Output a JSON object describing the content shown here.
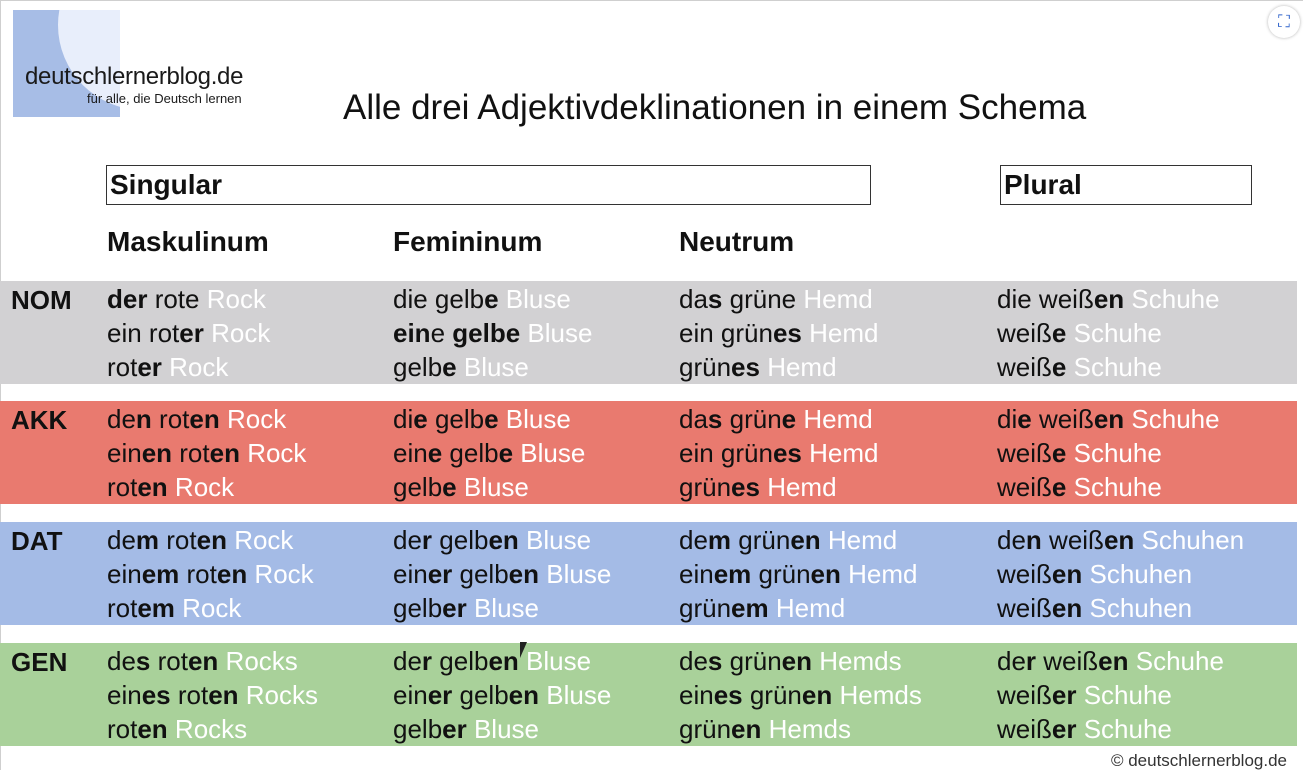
{
  "logo": {
    "name": "deutschlernerblog.de",
    "tagline": "für alle, die Deutsch lernen"
  },
  "title": "Alle drei Adjektivdeklinationen in einem Schema",
  "headers": {
    "singular": "Singular",
    "plural": "Plural"
  },
  "columns": [
    "Maskulinum",
    "Femininum",
    "Neutrum"
  ],
  "copyright": "© deutschlernerblog.de",
  "colors": {
    "nom": "#d2d1d3",
    "akk": "#e97a6f",
    "dat": "#a4bbe6",
    "gen": "#a9d19a"
  },
  "rows": [
    {
      "case": "NOM",
      "cells": [
        [
          [
            [
              "der",
              "r"
            ],
            [
              " rote",
              ""
            ],
            [
              " Rock",
              "noun"
            ]
          ],
          [
            [
              "ein",
              ""
            ],
            [
              " rot",
              ""
            ],
            [
              "er",
              "b"
            ],
            [
              " Rock",
              "noun"
            ]
          ],
          [
            [
              "rot",
              ""
            ],
            [
              "er",
              "b"
            ],
            [
              " Rock",
              "noun"
            ]
          ]
        ],
        [
          [
            [
              "die",
              ""
            ],
            [
              " gelb",
              ""
            ],
            [
              "e",
              "b"
            ],
            [
              " Bluse",
              "noun"
            ]
          ],
          [
            [
              "ein",
              "b"
            ],
            [
              "e",
              ""
            ],
            [
              " gelbe",
              "b"
            ],
            [
              " Bluse",
              "noun"
            ]
          ],
          [
            [
              "gelb",
              ""
            ],
            [
              "e",
              "b"
            ],
            [
              " Bluse",
              "noun"
            ]
          ]
        ],
        [
          [
            [
              "da",
              ""
            ],
            [
              "s",
              "b"
            ],
            [
              " grüne",
              ""
            ],
            [
              " Hemd",
              "noun"
            ]
          ],
          [
            [
              "ein",
              ""
            ],
            [
              " grün",
              ""
            ],
            [
              "es",
              "b"
            ],
            [
              " Hemd",
              "noun"
            ]
          ],
          [
            [
              "grün",
              ""
            ],
            [
              "es",
              "b"
            ],
            [
              " Hemd",
              "noun"
            ]
          ]
        ],
        [
          [
            [
              "die",
              ""
            ],
            [
              " weiß",
              ""
            ],
            [
              "en",
              "b"
            ],
            [
              " Schuhe",
              "noun"
            ]
          ],
          [
            [
              "weiß",
              ""
            ],
            [
              "e",
              "b"
            ],
            [
              " Schuhe",
              "noun"
            ]
          ],
          [
            [
              "weiß",
              ""
            ],
            [
              "e",
              "b"
            ],
            [
              " Schuhe",
              "noun"
            ]
          ]
        ]
      ]
    },
    {
      "case": "AKK",
      "cells": [
        [
          [
            [
              "de",
              ""
            ],
            [
              "n",
              "b"
            ],
            [
              " rot",
              ""
            ],
            [
              "en",
              "b"
            ],
            [
              " Rock",
              "noun"
            ]
          ],
          [
            [
              "ein",
              ""
            ],
            [
              "en",
              "b"
            ],
            [
              " rot",
              ""
            ],
            [
              "en",
              "b"
            ],
            [
              " Rock",
              "noun"
            ]
          ],
          [
            [
              "rot",
              ""
            ],
            [
              "en",
              "b"
            ],
            [
              " Rock",
              "noun"
            ]
          ]
        ],
        [
          [
            [
              "di",
              ""
            ],
            [
              "e",
              "b"
            ],
            [
              " gelb",
              ""
            ],
            [
              "e",
              "b"
            ],
            [
              " Bluse",
              "noun"
            ]
          ],
          [
            [
              "ein",
              ""
            ],
            [
              "e",
              "b"
            ],
            [
              " gelb",
              ""
            ],
            [
              "e",
              "b"
            ],
            [
              " Bluse",
              "noun"
            ]
          ],
          [
            [
              "gelb",
              ""
            ],
            [
              "e",
              "b"
            ],
            [
              " Bluse",
              "noun"
            ]
          ]
        ],
        [
          [
            [
              "da",
              ""
            ],
            [
              "s",
              "b"
            ],
            [
              " grün",
              ""
            ],
            [
              "e",
              "b"
            ],
            [
              " Hemd",
              "noun"
            ]
          ],
          [
            [
              "ein",
              ""
            ],
            [
              " grün",
              ""
            ],
            [
              "es",
              "b"
            ],
            [
              " Hemd",
              "noun"
            ]
          ],
          [
            [
              "grün",
              ""
            ],
            [
              "es",
              "b"
            ],
            [
              " Hemd",
              "noun"
            ]
          ]
        ],
        [
          [
            [
              "di",
              ""
            ],
            [
              "e",
              "b"
            ],
            [
              " weiß",
              ""
            ],
            [
              "en",
              "b"
            ],
            [
              " Schuhe",
              "noun"
            ]
          ],
          [
            [
              "weiß",
              ""
            ],
            [
              "e",
              "b"
            ],
            [
              " Schuhe",
              "noun"
            ]
          ],
          [
            [
              "weiß",
              ""
            ],
            [
              "e",
              "b"
            ],
            [
              " Schuhe",
              "noun"
            ]
          ]
        ]
      ]
    },
    {
      "case": "DAT",
      "cells": [
        [
          [
            [
              "de",
              ""
            ],
            [
              "m",
              "b"
            ],
            [
              " rot",
              ""
            ],
            [
              "en",
              "b"
            ],
            [
              " Rock",
              "noun"
            ]
          ],
          [
            [
              "ein",
              ""
            ],
            [
              "em",
              "b"
            ],
            [
              " rot",
              ""
            ],
            [
              "en",
              "b"
            ],
            [
              " Rock",
              "noun"
            ]
          ],
          [
            [
              "rot",
              ""
            ],
            [
              "em",
              "b"
            ],
            [
              " Rock",
              "noun"
            ]
          ]
        ],
        [
          [
            [
              "de",
              ""
            ],
            [
              "r",
              "b"
            ],
            [
              " gelb",
              ""
            ],
            [
              "en",
              "b"
            ],
            [
              " Bluse",
              "noun"
            ]
          ],
          [
            [
              "ein",
              ""
            ],
            [
              "er",
              "b"
            ],
            [
              " gelb",
              ""
            ],
            [
              "en",
              "b"
            ],
            [
              " Bluse",
              "noun"
            ]
          ],
          [
            [
              "gelb",
              ""
            ],
            [
              "er",
              "b"
            ],
            [
              " Bluse",
              "noun"
            ]
          ]
        ],
        [
          [
            [
              "de",
              ""
            ],
            [
              "m",
              "b"
            ],
            [
              " grün",
              ""
            ],
            [
              "en",
              "b"
            ],
            [
              " Hemd",
              "noun"
            ]
          ],
          [
            [
              "ein",
              ""
            ],
            [
              "em",
              "b"
            ],
            [
              " grün",
              ""
            ],
            [
              "en",
              "b"
            ],
            [
              " Hemd",
              "noun"
            ]
          ],
          [
            [
              "grün",
              ""
            ],
            [
              "em",
              "b"
            ],
            [
              " Hemd",
              "noun"
            ]
          ]
        ],
        [
          [
            [
              "de",
              ""
            ],
            [
              "n",
              "b"
            ],
            [
              " weiß",
              ""
            ],
            [
              "en",
              "b"
            ],
            [
              " Schuhen",
              "noun"
            ]
          ],
          [
            [
              "weiß",
              ""
            ],
            [
              "en",
              "b"
            ],
            [
              " Schuhen",
              "noun"
            ]
          ],
          [
            [
              "weiß",
              ""
            ],
            [
              "en",
              "b"
            ],
            [
              " Schuhen",
              "noun"
            ]
          ]
        ]
      ]
    },
    {
      "case": "GEN",
      "cells": [
        [
          [
            [
              "de",
              ""
            ],
            [
              "s",
              "b"
            ],
            [
              " rot",
              ""
            ],
            [
              "en",
              "b"
            ],
            [
              " Rocks",
              "noun"
            ]
          ],
          [
            [
              "ein",
              ""
            ],
            [
              "es",
              "b"
            ],
            [
              " rot",
              ""
            ],
            [
              "en",
              "b"
            ],
            [
              " Rocks",
              "noun"
            ]
          ],
          [
            [
              "rot",
              ""
            ],
            [
              "en",
              "b"
            ],
            [
              " Rocks",
              "noun"
            ]
          ]
        ],
        [
          [
            [
              "de",
              ""
            ],
            [
              "r",
              "b"
            ],
            [
              " gelb",
              ""
            ],
            [
              "en",
              "b"
            ],
            [
              " Bluse",
              "noun"
            ]
          ],
          [
            [
              "ein",
              ""
            ],
            [
              "er",
              "b"
            ],
            [
              " gelb",
              ""
            ],
            [
              "en",
              "b"
            ],
            [
              " Bluse",
              "noun"
            ]
          ],
          [
            [
              "gelb",
              ""
            ],
            [
              "er",
              "b"
            ],
            [
              " Bluse",
              "noun"
            ]
          ]
        ],
        [
          [
            [
              "de",
              ""
            ],
            [
              "s",
              "b"
            ],
            [
              " grün",
              ""
            ],
            [
              "en",
              "b"
            ],
            [
              " Hemds",
              "noun"
            ]
          ],
          [
            [
              "ein",
              ""
            ],
            [
              "es",
              "b"
            ],
            [
              " grün",
              ""
            ],
            [
              "en",
              "b"
            ],
            [
              " Hemds",
              "noun"
            ]
          ],
          [
            [
              "grün",
              ""
            ],
            [
              "en",
              "b"
            ],
            [
              " Hemds",
              "noun"
            ]
          ]
        ],
        [
          [
            [
              "de",
              ""
            ],
            [
              "r",
              "b"
            ],
            [
              " weiß",
              ""
            ],
            [
              "en",
              "b"
            ],
            [
              " Schuhe",
              "noun"
            ]
          ],
          [
            [
              "weiß",
              ""
            ],
            [
              "er",
              "b"
            ],
            [
              " Schuhe",
              "noun"
            ]
          ],
          [
            [
              "weiß",
              ""
            ],
            [
              "er",
              "b"
            ],
            [
              " Schuhe",
              "noun"
            ]
          ]
        ]
      ]
    }
  ]
}
